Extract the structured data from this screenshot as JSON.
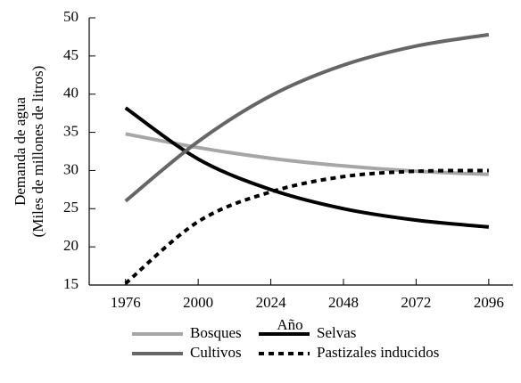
{
  "chart_data": {
    "type": "line",
    "y_label": [
      "Demanda de agua",
      "(Miles de millones de litros)"
    ],
    "x_label": "Año",
    "x": [
      1976,
      2000,
      2024,
      2048,
      2072,
      2096
    ],
    "xlim": [
      1964,
      2104
    ],
    "xticks": [
      1976,
      2000,
      2024,
      2048,
      2072,
      2096
    ],
    "ylim": [
      15,
      50
    ],
    "yticks": [
      15,
      20,
      25,
      30,
      35,
      40,
      45,
      50
    ],
    "series": [
      {
        "name": "Bosques",
        "color": "#a6a6a6",
        "dashed": false,
        "values": [
          34.8,
          33.0,
          31.6,
          30.6,
          29.9,
          29.5
        ]
      },
      {
        "name": "Selvas",
        "color": "#000000",
        "dashed": false,
        "values": [
          38.2,
          31.5,
          27.5,
          25.0,
          23.5,
          22.6
        ]
      },
      {
        "name": "Cultivos",
        "color": "#666666",
        "dashed": false,
        "values": [
          26.0,
          33.8,
          39.8,
          43.8,
          46.3,
          47.8
        ]
      },
      {
        "name": "Pastizales inducidos",
        "color": "#000000",
        "dashed": true,
        "values": [
          15.2,
          23.3,
          27.2,
          29.2,
          29.9,
          30.0
        ]
      }
    ]
  }
}
